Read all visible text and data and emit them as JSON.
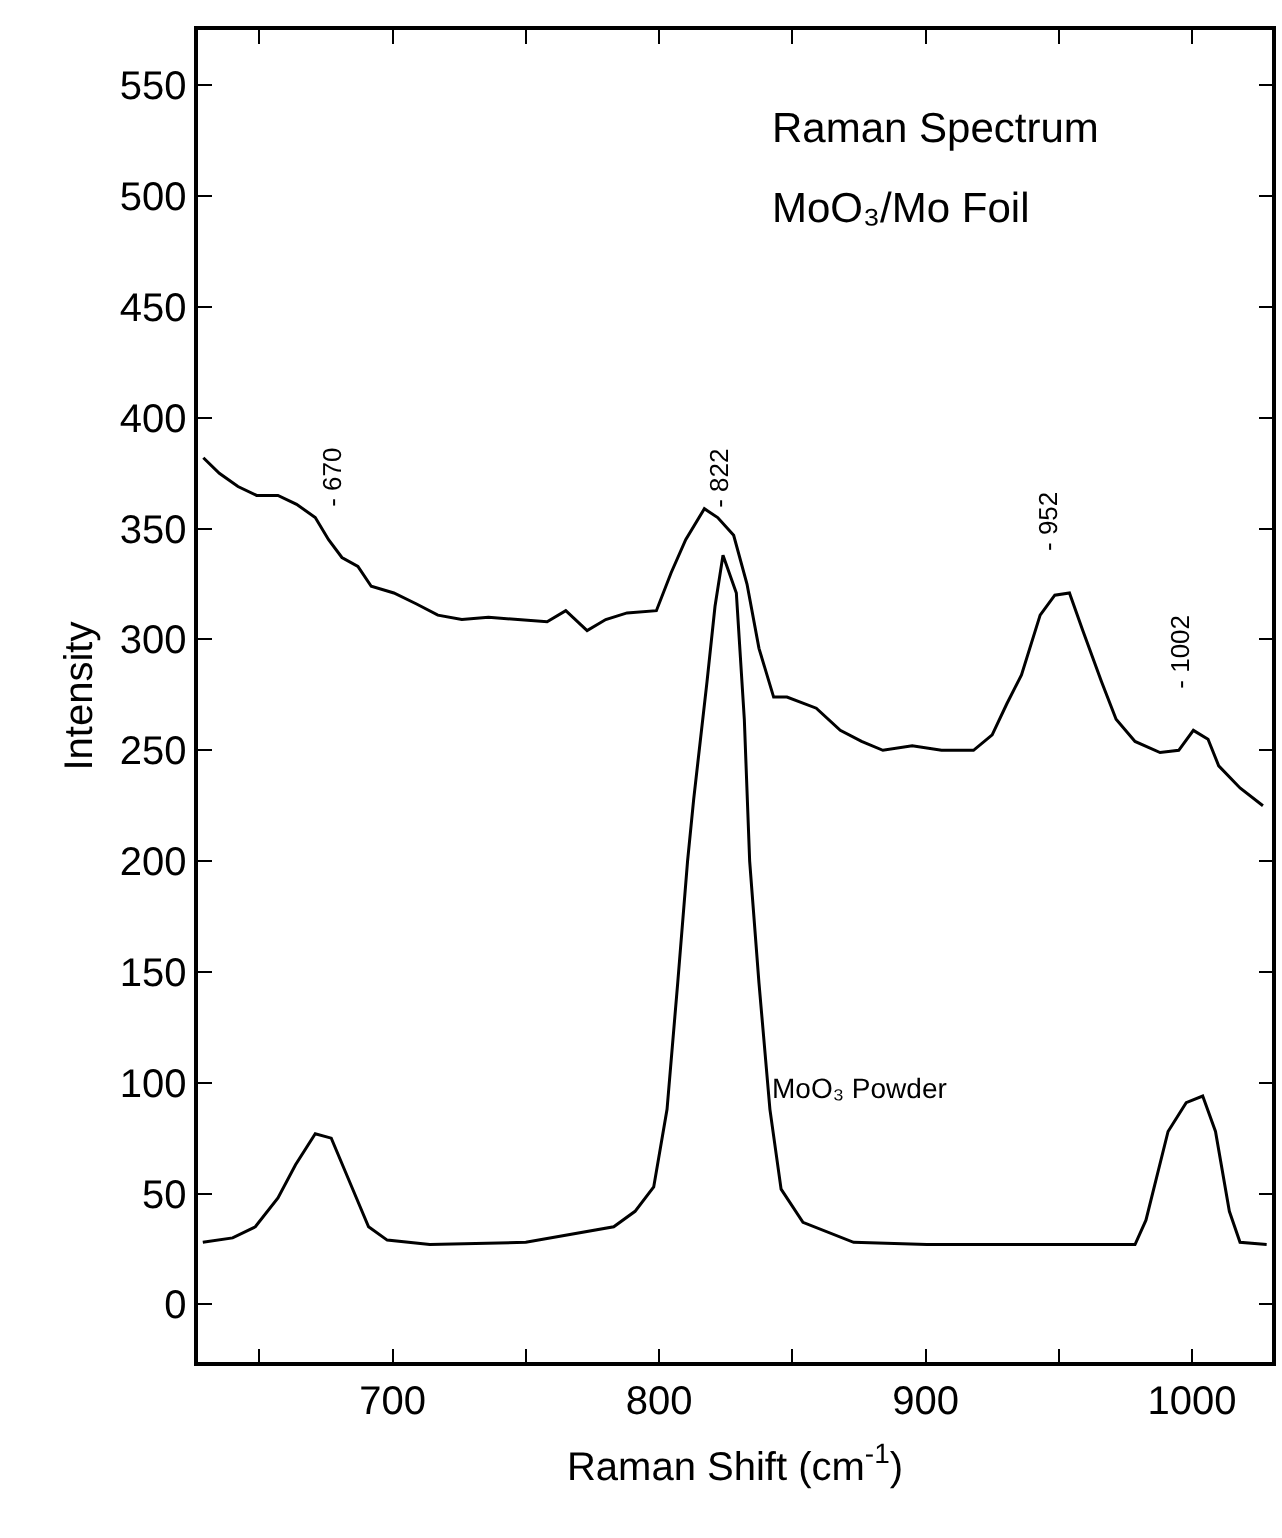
{
  "chart_data": {
    "type": "line",
    "title": "Raman Spectrum",
    "subtitle": "MoO₃/Mo Foil",
    "xlabel": "Raman Shift (cm$^{-1}$)",
    "ylabel": "Intensity",
    "xlim": [
      627,
      1030
    ],
    "ylim": [
      -26,
      575
    ],
    "xticks": [
      {
        "value": 650,
        "label": null
      },
      700,
      {
        "value": 750,
        "label": null
      },
      800,
      {
        "value": 850,
        "label": null
      },
      900,
      {
        "value": 950,
        "label": null
      },
      1000
    ],
    "yticks": [
      0,
      50,
      100,
      150,
      200,
      250,
      300,
      350,
      400,
      450,
      500,
      550
    ],
    "legend": false,
    "marker": "none",
    "line_style": "solid",
    "series": [
      {
        "color": "#000000",
        "x": [
          629,
          635,
          642,
          649,
          657,
          664,
          671,
          676,
          681,
          687,
          692,
          700.5,
          709,
          717,
          726,
          736,
          747,
          758,
          765,
          773,
          780,
          788,
          799,
          804.5,
          810,
          817,
          822,
          828,
          833,
          837.5,
          843,
          848,
          859,
          868,
          876,
          884,
          895,
          906,
          918,
          925,
          930.5,
          936,
          943,
          948.5,
          954,
          959,
          966,
          971.5,
          978.6,
          988,
          995,
          1000.5,
          1006,
          1010,
          1018,
          1026.6
        ],
        "values": [
          382,
          375,
          369,
          365,
          365,
          361,
          355,
          345,
          337,
          333,
          324,
          321,
          316,
          311,
          309,
          310,
          309,
          308,
          313,
          304,
          309,
          312,
          313,
          330,
          345,
          359,
          355,
          347,
          325,
          296,
          274,
          274,
          269,
          259,
          254,
          250,
          252,
          250,
          250,
          257,
          271,
          284,
          311,
          320,
          321,
          304,
          281,
          264,
          254,
          249,
          250,
          259,
          255,
          243,
          233,
          225
        ]
      },
      {
        "name": "MoO₃ Powder",
        "color": "#000000",
        "x": [
          628.8,
          640,
          648.5,
          657,
          663.6,
          671,
          677,
          684,
          691,
          698,
          714,
          750,
          783,
          791,
          798,
          803,
          807,
          810.7,
          813,
          818,
          821,
          824,
          829,
          832,
          834,
          837.5,
          841.6,
          845.8,
          854,
          873,
          900.5,
          978.6,
          982.7,
          991,
          997.8,
          1004,
          1008.8,
          1014,
          1018,
          1028
        ],
        "values": [
          28,
          30,
          35,
          48,
          63,
          77,
          75,
          55,
          35,
          29,
          27,
          28,
          35,
          42,
          53,
          88,
          145,
          200,
          228,
          281,
          315,
          338,
          321,
          264,
          200,
          145,
          88,
          52,
          37,
          28,
          27,
          27,
          38,
          78,
          91,
          94,
          78,
          42,
          28,
          27
        ]
      }
    ],
    "annotations": [
      "- 670",
      "- 822",
      "- 952",
      "- 1002"
    ]
  }
}
